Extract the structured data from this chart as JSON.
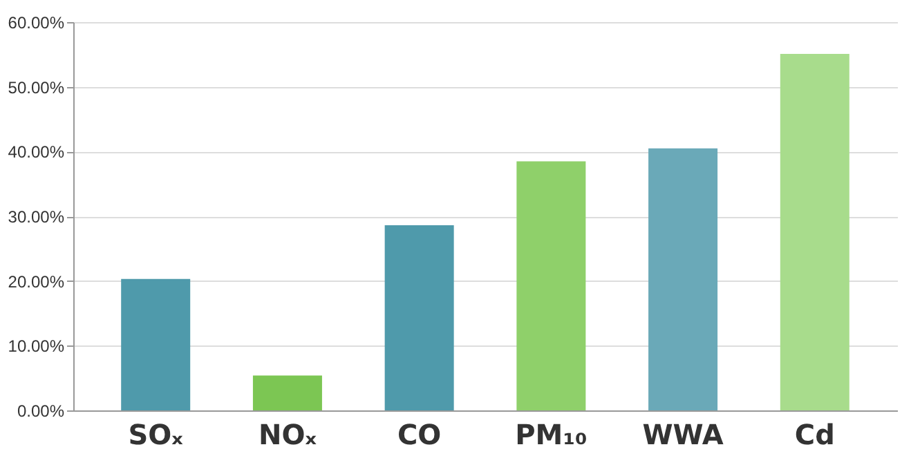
{
  "chart_data": {
    "type": "bar",
    "categories": [
      "SOₓ",
      "NOₓ",
      "CO",
      "PM₁₀",
      "WWA",
      "Cd"
    ],
    "values": [
      20.3,
      5.4,
      28.6,
      38.5,
      40.5,
      55.1
    ],
    "colors": [
      "#4f9aab",
      "#7cc653",
      "#4f9aab",
      "#8fd06a",
      "#6aa9b8",
      "#a8dc8c"
    ],
    "ylim": [
      0,
      60
    ],
    "yticks": [
      {
        "value": 0,
        "label": "0.00%"
      },
      {
        "value": 10,
        "label": "10.00%"
      },
      {
        "value": 20,
        "label": "20.00%"
      },
      {
        "value": 30,
        "label": "30.00%"
      },
      {
        "value": 40,
        "label": "40.00%"
      },
      {
        "value": 50,
        "label": "50.00%"
      },
      {
        "value": 60,
        "label": "60.00%"
      }
    ],
    "grid": "y"
  }
}
